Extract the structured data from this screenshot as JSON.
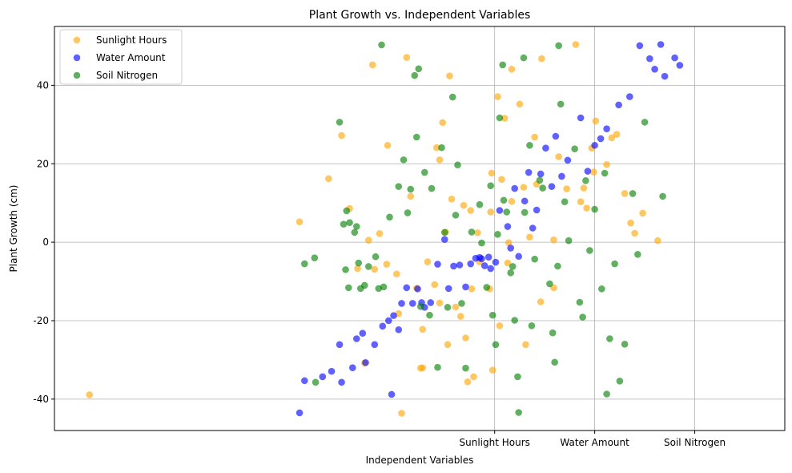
{
  "chart_data": {
    "type": "scatter",
    "title": "Plant Growth vs. Independent Variables",
    "xlabel": "Independent Variables",
    "ylabel": "Plant Growth (cm)",
    "xlim": [
      -4.4,
      2.9
    ],
    "ylim": [
      -48,
      55
    ],
    "x_ticks": [
      {
        "value": 0,
        "label": "Sunlight Hours"
      },
      {
        "value": 1,
        "label": "Water Amount"
      },
      {
        "value": 2,
        "label": "Soil Nitrogen"
      }
    ],
    "y_ticks": [
      -40,
      -20,
      0,
      20,
      40
    ],
    "grid": true,
    "legend_position": "top-left",
    "series": [
      {
        "name": "Sunlight Hours",
        "color": "#FFA500",
        "points": [
          [
            -4.05,
            -38.9
          ],
          [
            -1.95,
            5.2
          ],
          [
            -1.66,
            16.2
          ],
          [
            -1.53,
            27.2
          ],
          [
            -1.45,
            8.6
          ],
          [
            -1.37,
            -6.7
          ],
          [
            -1.3,
            -30.8
          ],
          [
            -1.26,
            0.5
          ],
          [
            -1.22,
            45.2
          ],
          [
            -1.2,
            -6.9
          ],
          [
            -1.15,
            2.2
          ],
          [
            -1.08,
            -5.6
          ],
          [
            -1.07,
            24.7
          ],
          [
            -0.98,
            -8.1
          ],
          [
            -0.96,
            -18.2
          ],
          [
            -0.93,
            -43.6
          ],
          [
            -0.88,
            47.1
          ],
          [
            -0.84,
            11.7
          ],
          [
            -0.78,
            -11.7
          ],
          [
            -0.74,
            -32.1
          ],
          [
            -0.72,
            -22.2
          ],
          [
            -0.72,
            -32.0
          ],
          [
            -0.67,
            -5.0
          ],
          [
            -0.6,
            -10.8
          ],
          [
            -0.58,
            24.1
          ],
          [
            -0.55,
            -15.5
          ],
          [
            -0.55,
            21.0
          ],
          [
            -0.52,
            30.5
          ],
          [
            -0.49,
            2.6
          ],
          [
            -0.47,
            -26.1
          ],
          [
            -0.45,
            42.4
          ],
          [
            -0.43,
            11.0
          ],
          [
            -0.39,
            -16.5
          ],
          [
            -0.34,
            -18.9
          ],
          [
            -0.31,
            9.4
          ],
          [
            -0.29,
            -24.4
          ],
          [
            -0.27,
            -35.6
          ],
          [
            -0.24,
            8.1
          ],
          [
            -0.23,
            -11.9
          ],
          [
            -0.21,
            -34.3
          ],
          [
            -0.17,
            2.4
          ],
          [
            -0.15,
            -5.0
          ],
          [
            -0.05,
            -11.9
          ],
          [
            -0.04,
            7.7
          ],
          [
            -0.03,
            17.6
          ],
          [
            -0.02,
            -32.6
          ],
          [
            0.03,
            37.1
          ],
          [
            0.05,
            -21.3
          ],
          [
            0.07,
            16.0
          ],
          [
            0.1,
            31.6
          ],
          [
            0.13,
            -5.3
          ],
          [
            0.14,
            -0.1
          ],
          [
            0.17,
            10.4
          ],
          [
            0.17,
            44.1
          ],
          [
            0.25,
            35.2
          ],
          [
            0.29,
            14.0
          ],
          [
            0.31,
            -26.1
          ],
          [
            0.35,
            1.3
          ],
          [
            0.4,
            26.8
          ],
          [
            0.42,
            14.8
          ],
          [
            0.46,
            -15.2
          ],
          [
            0.47,
            46.8
          ],
          [
            0.59,
            -11.6
          ],
          [
            0.59,
            0.6
          ],
          [
            0.64,
            21.8
          ],
          [
            0.72,
            13.6
          ],
          [
            0.81,
            50.4
          ],
          [
            0.86,
            10.3
          ],
          [
            0.89,
            13.8
          ],
          [
            0.92,
            8.7
          ],
          [
            0.97,
            24.0
          ],
          [
            0.99,
            17.9
          ],
          [
            1.01,
            30.9
          ],
          [
            1.12,
            19.8
          ],
          [
            1.17,
            26.6
          ],
          [
            1.22,
            27.5
          ],
          [
            1.3,
            12.4
          ],
          [
            1.36,
            4.9
          ],
          [
            1.4,
            2.3
          ],
          [
            1.48,
            7.4
          ],
          [
            1.63,
            0.4
          ]
        ]
      },
      {
        "name": "Water Amount",
        "color": "#0000FF",
        "points": [
          [
            -1.95,
            -43.5
          ],
          [
            -1.9,
            -35.3
          ],
          [
            -1.72,
            -34.3
          ],
          [
            -1.63,
            -32.9
          ],
          [
            -1.55,
            -26.1
          ],
          [
            -1.53,
            -35.7
          ],
          [
            -1.42,
            -32.0
          ],
          [
            -1.38,
            -24.6
          ],
          [
            -1.32,
            -23.2
          ],
          [
            -1.29,
            -30.7
          ],
          [
            -1.2,
            -26.1
          ],
          [
            -1.12,
            -21.4
          ],
          [
            -1.06,
            -20.0
          ],
          [
            -1.03,
            -38.8
          ],
          [
            -1.01,
            -18.7
          ],
          [
            -0.96,
            -22.3
          ],
          [
            -0.93,
            -15.6
          ],
          [
            -0.88,
            -11.6
          ],
          [
            -0.82,
            -15.6
          ],
          [
            -0.77,
            -11.9
          ],
          [
            -0.73,
            -15.4
          ],
          [
            -0.7,
            -16.6
          ],
          [
            -0.64,
            -15.4
          ],
          [
            -0.57,
            -5.6
          ],
          [
            -0.5,
            0.7
          ],
          [
            -0.46,
            -11.8
          ],
          [
            -0.41,
            -6.1
          ],
          [
            -0.35,
            -5.8
          ],
          [
            -0.29,
            -11.4
          ],
          [
            -0.24,
            -5.5
          ],
          [
            -0.19,
            -4.1
          ],
          [
            -0.15,
            -3.9
          ],
          [
            -0.13,
            -4.2
          ],
          [
            -0.1,
            -6.0
          ],
          [
            -0.06,
            -3.8
          ],
          [
            -0.04,
            -6.7
          ],
          [
            0.01,
            -5.1
          ],
          [
            0.05,
            8.1
          ],
          [
            0.13,
            4.0
          ],
          [
            0.16,
            -1.5
          ],
          [
            0.2,
            13.7
          ],
          [
            0.24,
            -3.6
          ],
          [
            0.3,
            10.5
          ],
          [
            0.34,
            17.8
          ],
          [
            0.38,
            3.6
          ],
          [
            0.42,
            8.2
          ],
          [
            0.46,
            17.4
          ],
          [
            0.51,
            24.0
          ],
          [
            0.57,
            14.2
          ],
          [
            0.61,
            27.0
          ],
          [
            0.67,
            16.8
          ],
          [
            0.73,
            20.9
          ],
          [
            0.86,
            31.7
          ],
          [
            0.93,
            18.1
          ],
          [
            1.0,
            24.7
          ],
          [
            1.06,
            26.4
          ],
          [
            1.12,
            28.9
          ],
          [
            1.24,
            35.0
          ],
          [
            1.35,
            37.1
          ],
          [
            1.45,
            50.1
          ],
          [
            1.55,
            46.8
          ],
          [
            1.6,
            44.1
          ],
          [
            1.66,
            50.4
          ],
          [
            1.7,
            42.3
          ],
          [
            1.8,
            47.0
          ],
          [
            1.85,
            45.1
          ]
        ]
      },
      {
        "name": "Soil Nitrogen",
        "color": "#008000",
        "points": [
          [
            -1.9,
            -5.5
          ],
          [
            -1.8,
            -4.0
          ],
          [
            -1.79,
            -35.7
          ],
          [
            -1.55,
            30.6
          ],
          [
            -1.51,
            4.6
          ],
          [
            -1.49,
            -7.0
          ],
          [
            -1.48,
            8.0
          ],
          [
            -1.46,
            -11.6
          ],
          [
            -1.45,
            5.0
          ],
          [
            -1.4,
            2.5
          ],
          [
            -1.38,
            4.0
          ],
          [
            -1.36,
            -5.3
          ],
          [
            -1.34,
            -11.8
          ],
          [
            -1.3,
            -11.0
          ],
          [
            -1.26,
            -6.2
          ],
          [
            -1.19,
            -3.7
          ],
          [
            -1.16,
            -11.8
          ],
          [
            -1.13,
            50.3
          ],
          [
            -1.11,
            -11.4
          ],
          [
            -1.05,
            6.4
          ],
          [
            -0.96,
            14.2
          ],
          [
            -0.91,
            21.0
          ],
          [
            -0.87,
            7.5
          ],
          [
            -0.84,
            13.5
          ],
          [
            -0.8,
            42.5
          ],
          [
            -0.78,
            26.8
          ],
          [
            -0.76,
            44.2
          ],
          [
            -0.74,
            -16.4
          ],
          [
            -0.7,
            17.8
          ],
          [
            -0.65,
            -18.6
          ],
          [
            -0.63,
            13.7
          ],
          [
            -0.57,
            -31.9
          ],
          [
            -0.53,
            24.1
          ],
          [
            -0.5,
            2.5
          ],
          [
            -0.47,
            -16.6
          ],
          [
            -0.42,
            37.0
          ],
          [
            -0.39,
            6.9
          ],
          [
            -0.37,
            19.7
          ],
          [
            -0.33,
            -15.6
          ],
          [
            -0.29,
            -32.1
          ],
          [
            -0.23,
            2.6
          ],
          [
            -0.15,
            9.6
          ],
          [
            -0.13,
            -0.2
          ],
          [
            -0.08,
            -11.5
          ],
          [
            -0.04,
            14.4
          ],
          [
            -0.02,
            -18.6
          ],
          [
            0.01,
            -26.1
          ],
          [
            0.03,
            2.0
          ],
          [
            0.05,
            31.7
          ],
          [
            0.08,
            45.2
          ],
          [
            0.09,
            10.7
          ],
          [
            0.12,
            7.7
          ],
          [
            0.16,
            -7.8
          ],
          [
            0.18,
            -6.2
          ],
          [
            0.2,
            -19.9
          ],
          [
            0.23,
            -34.3
          ],
          [
            0.24,
            -43.4
          ],
          [
            0.29,
            47.0
          ],
          [
            0.3,
            7.6
          ],
          [
            0.35,
            24.7
          ],
          [
            0.37,
            -21.3
          ],
          [
            0.4,
            -4.3
          ],
          [
            0.45,
            15.8
          ],
          [
            0.48,
            13.8
          ],
          [
            0.55,
            -10.6
          ],
          [
            0.58,
            -23.1
          ],
          [
            0.6,
            -30.6
          ],
          [
            0.63,
            -6.1
          ],
          [
            0.64,
            50.1
          ],
          [
            0.66,
            35.2
          ],
          [
            0.7,
            10.3
          ],
          [
            0.74,
            0.4
          ],
          [
            0.8,
            23.8
          ],
          [
            0.85,
            -15.3
          ],
          [
            0.88,
            -19.1
          ],
          [
            0.91,
            15.7
          ],
          [
            0.95,
            -2.1
          ],
          [
            1.0,
            8.4
          ],
          [
            1.07,
            -11.9
          ],
          [
            1.1,
            17.6
          ],
          [
            1.12,
            -38.7
          ],
          [
            1.15,
            -24.6
          ],
          [
            1.2,
            -5.5
          ],
          [
            1.25,
            -35.4
          ],
          [
            1.3,
            -26.0
          ],
          [
            1.38,
            12.4
          ],
          [
            1.43,
            -3.1
          ],
          [
            1.5,
            30.6
          ],
          [
            1.68,
            11.7
          ]
        ]
      }
    ]
  }
}
